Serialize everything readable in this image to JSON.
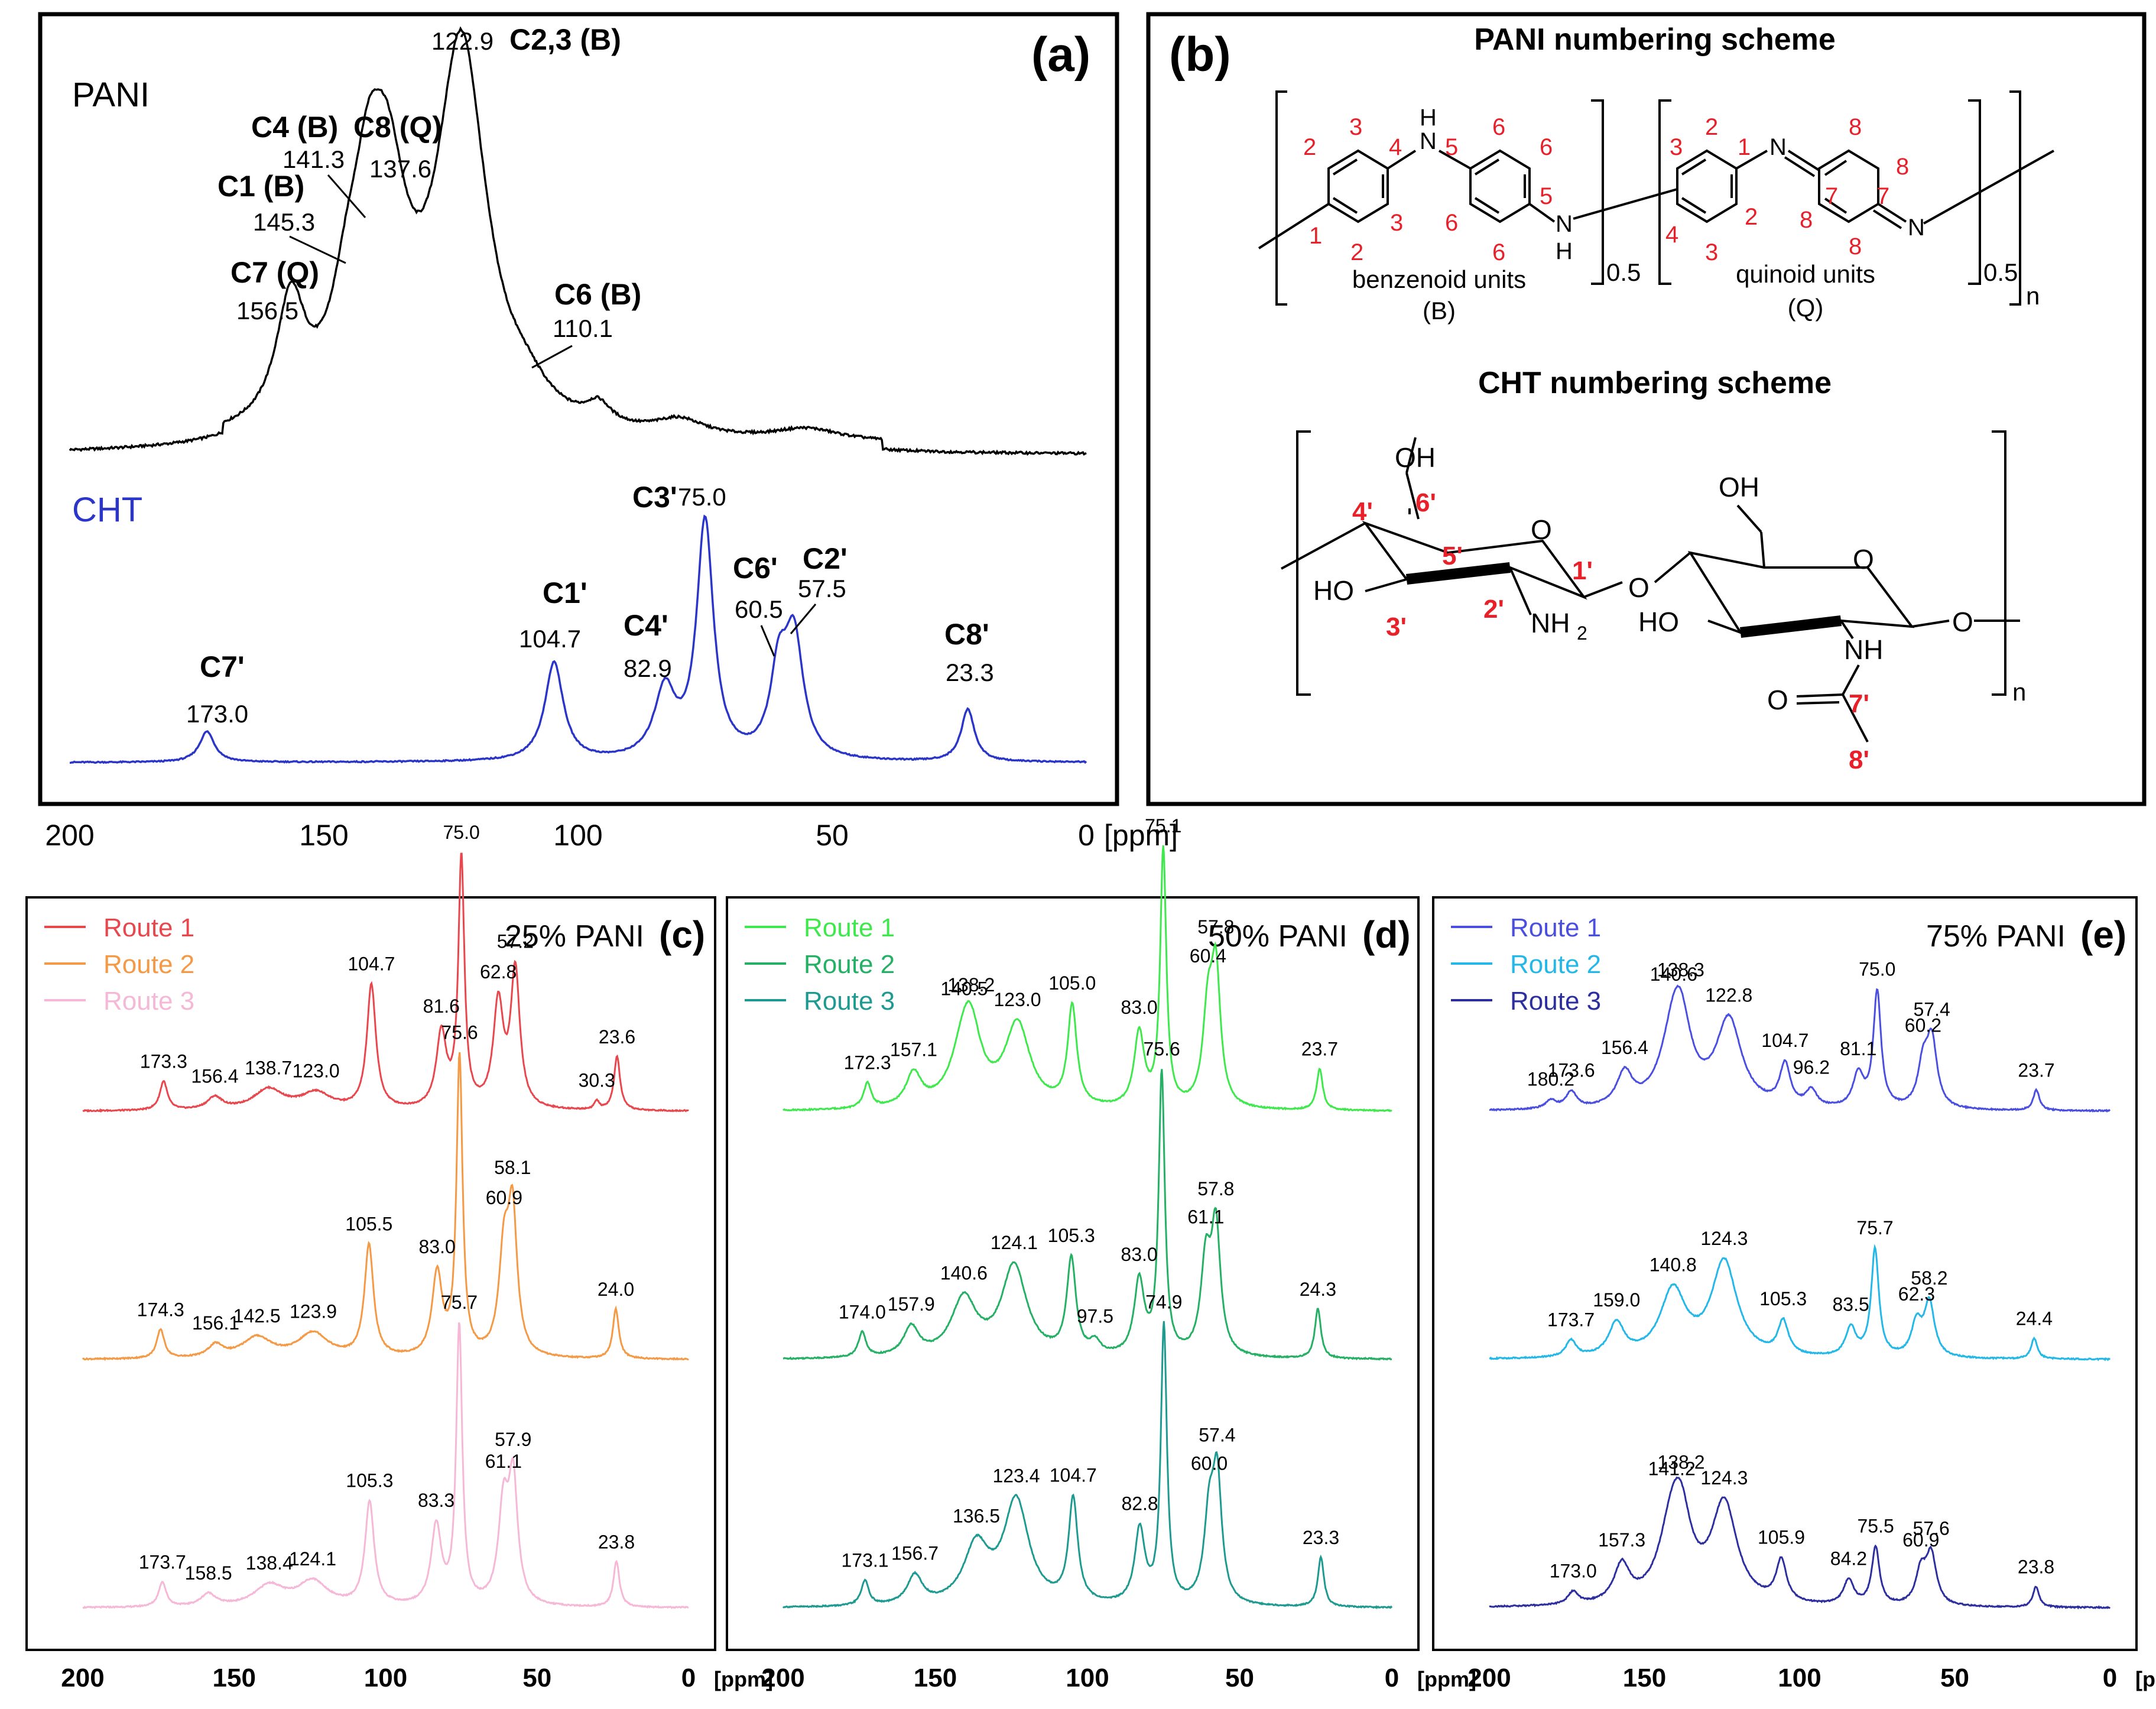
{
  "chart_data": {
    "type": "line",
    "x_unit": "[ppm]",
    "x_range": [
      200,
      0
    ],
    "panel_a": {
      "letter": "(a)",
      "ticks": [
        "200",
        "150",
        "100",
        "50",
        "0"
      ],
      "series": [
        {
          "name": "PANI",
          "color": "#000000",
          "baseline": 0.08,
          "peaks": [
            [
              156.5,
              0.3,
              3.5
            ],
            [
              145.3,
              0.22,
              4
            ],
            [
              141.3,
              0.3,
              3.5
            ],
            [
              137.6,
              0.52,
              5
            ],
            [
              122.9,
              0.95,
              6
            ],
            [
              110.1,
              0.05,
              5
            ],
            [
              96,
              0.05,
              3
            ],
            [
              80,
              0.04,
              6
            ],
            [
              55,
              0.03,
              8
            ]
          ],
          "labels": [
            {
              "assign": "C7 (Q)",
              "ppm": "156.5"
            },
            {
              "assign": "C1 (B)",
              "ppm": "145.3"
            },
            {
              "assign": "C4 (B)",
              "ppm": "141.3"
            },
            {
              "assign": "C8 (Q)",
              "ppm": "137.6"
            },
            {
              "assign": "C2,3 (B)",
              "ppm": "122.9"
            },
            {
              "assign": "C6 (B)",
              "ppm": "110.1"
            }
          ]
        },
        {
          "name": "CHT",
          "color": "#2b35c7",
          "peaks": [
            [
              173.0,
              0.1,
              1.8
            ],
            [
              104.7,
              0.32,
              2.2
            ],
            [
              82.9,
              0.22,
              2.5
            ],
            [
              75.0,
              0.77,
              2.0
            ],
            [
              60.5,
              0.26,
              2.0
            ],
            [
              57.5,
              0.38,
              2.2
            ],
            [
              23.3,
              0.17,
              1.6
            ]
          ],
          "labels": [
            {
              "assign": "C7'",
              "ppm": "173.0"
            },
            {
              "assign": "C1'",
              "ppm": "104.7"
            },
            {
              "assign": "C4'",
              "ppm": "82.9"
            },
            {
              "assign": "C3'",
              "ppm": "75.0"
            },
            {
              "assign": "C6'",
              "ppm": "60.5"
            },
            {
              "assign": "C2'",
              "ppm": "57.5"
            },
            {
              "assign": "C8'",
              "ppm": "23.3"
            }
          ]
        }
      ]
    },
    "panel_b": {
      "letter": "(b)",
      "pani_title": "PANI numbering scheme",
      "cht_title": "CHT numbering scheme",
      "benzenoid_label": "benzenoid units",
      "benzenoid_abbr": "(B)",
      "quinoid_label": "quinoid units",
      "quinoid_abbr": "(Q)",
      "subscript_half": "0.5",
      "subscript_n": "n",
      "atoms": {
        "N": "N",
        "H": "H",
        "NH": "N",
        "O": "O",
        "OH": "OH",
        "HO": "HO",
        "NH2": "NH",
        "NHsub": "2",
        "NHb": "NH"
      },
      "pani_numbers": [
        "1",
        "2",
        "3",
        "4",
        "5",
        "6",
        "7",
        "8"
      ],
      "cht_numbers": [
        "1'",
        "2'",
        "3'",
        "4'",
        "5'",
        "6'",
        "7'",
        "8'"
      ]
    },
    "panels_cde": [
      {
        "letter": "(c)",
        "title": "25% PANI",
        "ticks": [
          "200",
          "150",
          "100",
          "50",
          "0"
        ],
        "series": [
          {
            "name": "Route 1",
            "color": "#e8474e",
            "peaks": [
              [
                173.3,
                0.07,
                1.5
              ],
              [
                156.4,
                0.03,
                3
              ],
              [
                138.7,
                0.05,
                6
              ],
              [
                123.0,
                0.04,
                6
              ],
              [
                104.7,
                0.3,
                1.8
              ],
              [
                81.6,
                0.18,
                2
              ],
              [
                75.0,
                0.6,
                1.2
              ],
              [
                62.8,
                0.25,
                2
              ],
              [
                57.2,
                0.33,
                1.8
              ],
              [
                30.3,
                0.02,
                1
              ],
              [
                23.6,
                0.13,
                1.2
              ]
            ],
            "labels": [
              "173.3",
              "156.4",
              "138.7",
              "123.0",
              "104.7",
              "81.6",
              "75.0",
              "62.8",
              "57.2",
              "30.3",
              "23.6"
            ]
          },
          {
            "name": "Route 2",
            "color": "#f49a46",
            "peaks": [
              [
                174.3,
                0.07,
                1.5
              ],
              [
                156.1,
                0.03,
                3
              ],
              [
                142.5,
                0.05,
                6
              ],
              [
                123.9,
                0.06,
                6
              ],
              [
                105.5,
                0.27,
                1.8
              ],
              [
                83.0,
                0.2,
                2
              ],
              [
                75.6,
                0.72,
                1.2
              ],
              [
                60.9,
                0.24,
                2
              ],
              [
                58.1,
                0.33,
                1.8
              ],
              [
                24.0,
                0.12,
                1.2
              ]
            ],
            "labels": [
              "174.3",
              "156.1",
              "142.5",
              "123.9",
              "105.5",
              "83.0",
              "75.6",
              "60.9",
              "58.1",
              "24.0"
            ]
          },
          {
            "name": "Route 3",
            "color": "#f5b8d6",
            "peaks": [
              [
                173.7,
                0.06,
                1.5
              ],
              [
                158.5,
                0.03,
                3
              ],
              [
                138.4,
                0.05,
                6
              ],
              [
                124.1,
                0.06,
                6
              ],
              [
                105.3,
                0.25,
                1.8
              ],
              [
                83.3,
                0.19,
                2
              ],
              [
                75.7,
                0.67,
                1.2
              ],
              [
                61.1,
                0.23,
                2
              ],
              [
                57.9,
                0.29,
                1.8
              ],
              [
                23.8,
                0.11,
                1.2
              ]
            ],
            "labels": [
              "173.7",
              "158.5",
              "138.4",
              "124.1",
              "105.3",
              "83.3",
              "75.7",
              "61.1",
              "57.9",
              "23.8"
            ]
          }
        ]
      },
      {
        "letter": "(d)",
        "title": "50% PANI",
        "ticks": [
          "200",
          "150",
          "100",
          "50",
          "0"
        ],
        "series": [
          {
            "name": "Route 1",
            "color": "#3ee84d",
            "peaks": [
              [
                172.3,
                0.06,
                1.5
              ],
              [
                157.1,
                0.08,
                3
              ],
              [
                140.5,
                0.14,
                5
              ],
              [
                138.2,
                0.12,
                4
              ],
              [
                123.0,
                0.2,
                5
              ],
              [
                105.0,
                0.24,
                1.8
              ],
              [
                83.0,
                0.18,
                2
              ],
              [
                75.1,
                0.62,
                1.2
              ],
              [
                60.4,
                0.22,
                2
              ],
              [
                57.8,
                0.31,
                1.8
              ],
              [
                23.7,
                0.1,
                1.2
              ]
            ],
            "labels": [
              "172.3",
              "157.1",
              "140.5",
              "138.2",
              "123.0",
              "105.0",
              "83.0",
              "75.1",
              "60.4",
              "57.8",
              "23.7"
            ]
          },
          {
            "name": "Route 2",
            "color": "#25b065",
            "peaks": [
              [
                174.0,
                0.06,
                1.5
              ],
              [
                157.9,
                0.07,
                3
              ],
              [
                140.6,
                0.14,
                5
              ],
              [
                124.1,
                0.22,
                5
              ],
              [
                105.3,
                0.23,
                1.8
              ],
              [
                97.5,
                0.03,
                2
              ],
              [
                83.0,
                0.18,
                2
              ],
              [
                75.6,
                0.68,
                1.2
              ],
              [
                61.1,
                0.22,
                2
              ],
              [
                57.8,
                0.3,
                1.8
              ],
              [
                24.3,
                0.12,
                1.2
              ]
            ],
            "labels": [
              "174.0",
              "157.9",
              "140.6",
              "124.1",
              "105.3",
              "97.5",
              "83.0",
              "75.6",
              "61.1",
              "57.8",
              "24.3"
            ]
          },
          {
            "name": "Route 3",
            "color": "#1e9a90",
            "peaks": [
              [
                173.1,
                0.06,
                1.5
              ],
              [
                156.7,
                0.07,
                3
              ],
              [
                136.5,
                0.14,
                5
              ],
              [
                123.4,
                0.25,
                5
              ],
              [
                104.7,
                0.25,
                1.8
              ],
              [
                82.8,
                0.18,
                2
              ],
              [
                74.9,
                0.67,
                1.2
              ],
              [
                60.0,
                0.2,
                2
              ],
              [
                57.4,
                0.29,
                1.8
              ],
              [
                23.3,
                0.12,
                1.2
              ]
            ],
            "labels": [
              "173.1",
              "156.7",
              "136.5",
              "123.4",
              "104.7",
              "82.8",
              "74.9",
              "60.0",
              "57.4",
              "23.3"
            ]
          }
        ]
      },
      {
        "letter": "(e)",
        "title": "75% PANI",
        "ticks": [
          "200",
          "150",
          "100",
          "50",
          "0"
        ],
        "series": [
          {
            "name": "Route 1",
            "color": "#4a4fe0",
            "peaks": [
              [
                180.2,
                0.02,
                2
              ],
              [
                173.6,
                0.04,
                2
              ],
              [
                156.4,
                0.08,
                3
              ],
              [
                140.6,
                0.16,
                5
              ],
              [
                138.3,
                0.14,
                4
              ],
              [
                122.8,
                0.21,
                5
              ],
              [
                104.7,
                0.1,
                2
              ],
              [
                96.2,
                0.04,
                2
              ],
              [
                81.1,
                0.08,
                2
              ],
              [
                75.0,
                0.28,
                1.5
              ],
              [
                60.2,
                0.1,
                2
              ],
              [
                57.4,
                0.16,
                2
              ],
              [
                23.7,
                0.05,
                1.2
              ]
            ],
            "labels": [
              "180.2",
              "173.6",
              "156.4",
              "140.6",
              "138.3",
              "122.8",
              "104.7",
              "96.2",
              "81.1",
              "75.0",
              "60.2",
              "57.4",
              "23.7"
            ]
          },
          {
            "name": "Route 2",
            "color": "#23b8e8",
            "peaks": [
              [
                173.7,
                0.04,
                2
              ],
              [
                159.0,
                0.08,
                3
              ],
              [
                140.8,
                0.16,
                5
              ],
              [
                124.3,
                0.23,
                5
              ],
              [
                105.3,
                0.08,
                2
              ],
              [
                83.5,
                0.07,
                2
              ],
              [
                75.7,
                0.26,
                1.5
              ],
              [
                62.3,
                0.08,
                2
              ],
              [
                58.2,
                0.13,
                2
              ],
              [
                24.4,
                0.05,
                1.2
              ]
            ],
            "labels": [
              "173.7",
              "159.0",
              "140.8",
              "124.3",
              "105.3",
              "83.5",
              "75.7",
              "62.3",
              "58.2",
              "24.4"
            ]
          },
          {
            "name": "Route 3",
            "color": "#2d2f9e",
            "peaks": [
              [
                173.0,
                0.03,
                2
              ],
              [
                157.3,
                0.09,
                3
              ],
              [
                141.2,
                0.17,
                5
              ],
              [
                138.2,
                0.15,
                4
              ],
              [
                124.3,
                0.24,
                5
              ],
              [
                105.9,
                0.1,
                2
              ],
              [
                84.2,
                0.06,
                2
              ],
              [
                75.5,
                0.14,
                1.5
              ],
              [
                60.9,
                0.08,
                2
              ],
              [
                57.6,
                0.12,
                2
              ],
              [
                23.8,
                0.05,
                1.2
              ]
            ],
            "labels": [
              "173.0",
              "157.3",
              "141.2",
              "138.2",
              "124.3",
              "105.9",
              "84.2",
              "75.5",
              "60.9",
              "57.6",
              "23.8"
            ]
          }
        ]
      }
    ]
  }
}
